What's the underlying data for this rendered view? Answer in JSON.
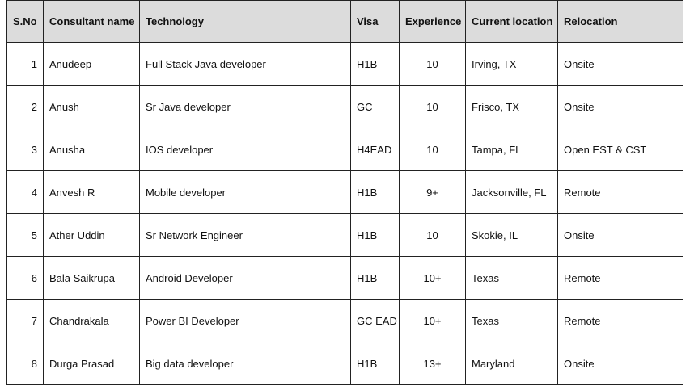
{
  "table": {
    "headers": {
      "sno": "S.No",
      "name": "Consultant name",
      "technology": "Technology",
      "visa": "Visa",
      "experience": "Experience",
      "location": "Current location",
      "relocation": "Relocation"
    },
    "rows": [
      {
        "sno": "1",
        "name": "Anudeep",
        "technology": "Full Stack Java developer",
        "visa": "H1B",
        "experience": "10",
        "location": "Irving, TX",
        "relocation": "Onsite"
      },
      {
        "sno": "2",
        "name": "Anush",
        "technology": "Sr Java developer",
        "visa": "GC",
        "experience": "10",
        "location": "Frisco, TX",
        "relocation": "Onsite"
      },
      {
        "sno": "3",
        "name": "Anusha",
        "technology": "IOS developer",
        "visa": "H4EAD",
        "experience": "10",
        "location": "Tampa, FL",
        "relocation": "Open EST & CST"
      },
      {
        "sno": "4",
        "name": "Anvesh R",
        "technology": "Mobile developer",
        "visa": "H1B",
        "experience": "9+",
        "location": "Jacksonville, FL",
        "relocation": "Remote"
      },
      {
        "sno": "5",
        "name": "Ather Uddin",
        "technology": "Sr Network Engineer",
        "visa": "H1B",
        "experience": "10",
        "location": "Skokie, IL",
        "relocation": "Onsite"
      },
      {
        "sno": "6",
        "name": "Bala Saikrupa",
        "technology": "Android Developer",
        "visa": "H1B",
        "experience": "10+",
        "location": "Texas",
        "relocation": "Remote"
      },
      {
        "sno": "7",
        "name": "Chandrakala",
        "technology": "Power BI Developer",
        "visa": "GC EAD",
        "experience": "10+",
        "location": "Texas",
        "relocation": "Remote"
      },
      {
        "sno": "8",
        "name": "Durga Prasad",
        "technology": "Big data developer",
        "visa": "H1B",
        "experience": "13+",
        "location": "Maryland",
        "relocation": "Onsite"
      }
    ]
  }
}
